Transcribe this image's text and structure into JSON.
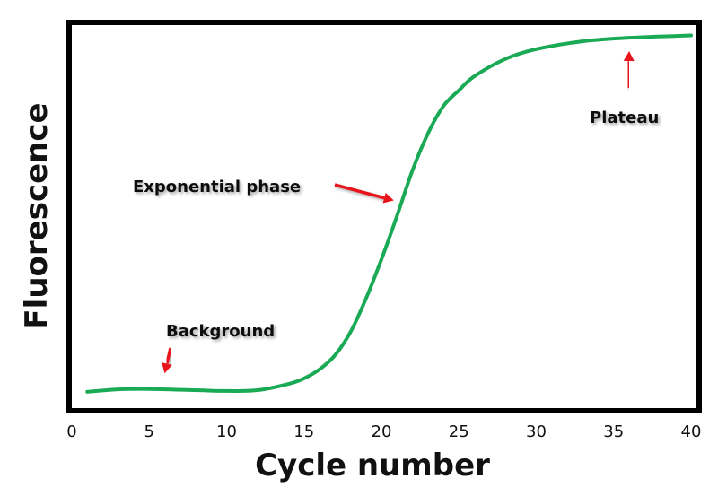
{
  "chart_data": {
    "type": "line",
    "title": "",
    "xlabel": "Cycle number",
    "ylabel": "Fluorescence",
    "xlim": [
      0,
      40
    ],
    "ylim": [
      0,
      100
    ],
    "xticks": [
      0,
      5,
      10,
      15,
      20,
      25,
      30,
      35,
      40
    ],
    "grid": false,
    "y_ticks_shown": false,
    "series": [
      {
        "color": "#1aaa55",
        "x": [
          1,
          3,
          5,
          8,
          10,
          12,
          14,
          15,
          16,
          17,
          18,
          19,
          20,
          21,
          22,
          23,
          24,
          25,
          26,
          28,
          30,
          33,
          36,
          40
        ],
        "y": [
          5.3,
          5.9,
          6.0,
          5.7,
          5.5,
          5.7,
          7.3,
          8.7,
          11,
          14.6,
          20.5,
          29,
          39,
          50,
          61.6,
          71,
          78,
          82,
          85.6,
          90,
          92.5,
          94.5,
          95.4,
          96
        ]
      }
    ],
    "annotations": [
      {
        "text": "Background",
        "arrow_color": "#e8141c",
        "points_to": {
          "x": 6,
          "y": 10
        }
      },
      {
        "text": "Exponential phase",
        "arrow_color": "#e8141c",
        "points_to": {
          "x": 20.8,
          "y": 54
        }
      },
      {
        "text": "Plateau",
        "arrow_color": "#e8141c",
        "points_to": {
          "x": 36,
          "y": 92
        }
      }
    ]
  }
}
